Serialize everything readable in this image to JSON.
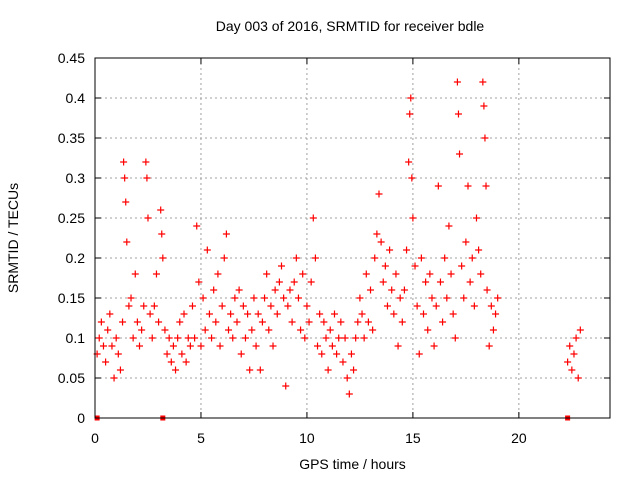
{
  "chart_data": {
    "type": "scatter",
    "title": "Day 003 of 2016, SRMTID for receiver bdle",
    "xlabel": "GPS time / hours",
    "ylabel": "SRMTID / TECUs",
    "xlim": [
      0,
      24.3
    ],
    "ylim": [
      0,
      0.45
    ],
    "xticks": [
      0,
      5,
      10,
      15,
      20
    ],
    "yticks": [
      0,
      0.05,
      0.1,
      0.15,
      0.2,
      0.25,
      0.3,
      0.35,
      0.4,
      0.45
    ],
    "ytick_labels": [
      "0",
      "0.05",
      "0.1",
      "0.15",
      "0.2",
      "0.25",
      "0.3",
      "0.35",
      "0.4",
      "0.45"
    ],
    "grid": true,
    "marker": "+",
    "series": [
      {
        "name": "SRMTID",
        "color": "#ff0000",
        "points": [
          [
            0.1,
            0.08
          ],
          [
            0.2,
            0.1
          ],
          [
            0.3,
            0.12
          ],
          [
            0.4,
            0.09
          ],
          [
            0.5,
            0.07
          ],
          [
            0.6,
            0.11
          ],
          [
            0.7,
            0.13
          ],
          [
            0.8,
            0.09
          ],
          [
            0.9,
            0.05
          ],
          [
            1.0,
            0.1
          ],
          [
            1.1,
            0.08
          ],
          [
            1.2,
            0.06
          ],
          [
            1.3,
            0.12
          ],
          [
            1.35,
            0.32
          ],
          [
            1.4,
            0.3
          ],
          [
            1.45,
            0.27
          ],
          [
            1.5,
            0.22
          ],
          [
            1.6,
            0.14
          ],
          [
            1.7,
            0.15
          ],
          [
            1.8,
            0.1
          ],
          [
            1.9,
            0.18
          ],
          [
            2.0,
            0.12
          ],
          [
            2.1,
            0.09
          ],
          [
            2.2,
            0.11
          ],
          [
            2.3,
            0.14
          ],
          [
            2.4,
            0.32
          ],
          [
            2.45,
            0.3
          ],
          [
            2.5,
            0.25
          ],
          [
            2.6,
            0.13
          ],
          [
            2.7,
            0.1
          ],
          [
            2.8,
            0.14
          ],
          [
            2.9,
            0.18
          ],
          [
            3.0,
            0.12
          ],
          [
            3.1,
            0.26
          ],
          [
            3.15,
            0.23
          ],
          [
            3.2,
            0.2
          ],
          [
            3.3,
            0.11
          ],
          [
            3.4,
            0.08
          ],
          [
            3.5,
            0.1
          ],
          [
            3.6,
            0.07
          ],
          [
            3.7,
            0.09
          ],
          [
            3.8,
            0.06
          ],
          [
            3.9,
            0.1
          ],
          [
            4.0,
            0.12
          ],
          [
            4.1,
            0.08
          ],
          [
            4.2,
            0.13
          ],
          [
            4.3,
            0.07
          ],
          [
            4.4,
            0.1
          ],
          [
            4.5,
            0.09
          ],
          [
            4.6,
            0.14
          ],
          [
            4.7,
            0.1
          ],
          [
            4.8,
            0.24
          ],
          [
            4.9,
            0.17
          ],
          [
            5.0,
            0.09
          ],
          [
            5.1,
            0.15
          ],
          [
            5.2,
            0.11
          ],
          [
            5.3,
            0.21
          ],
          [
            5.4,
            0.13
          ],
          [
            5.5,
            0.1
          ],
          [
            5.6,
            0.16
          ],
          [
            5.7,
            0.12
          ],
          [
            5.8,
            0.18
          ],
          [
            5.9,
            0.09
          ],
          [
            6.0,
            0.14
          ],
          [
            6.1,
            0.2
          ],
          [
            6.2,
            0.23
          ],
          [
            6.3,
            0.11
          ],
          [
            6.4,
            0.13
          ],
          [
            6.5,
            0.1
          ],
          [
            6.6,
            0.15
          ],
          [
            6.7,
            0.12
          ],
          [
            6.8,
            0.16
          ],
          [
            6.9,
            0.08
          ],
          [
            7.0,
            0.14
          ],
          [
            7.1,
            0.1
          ],
          [
            7.2,
            0.13
          ],
          [
            7.3,
            0.06
          ],
          [
            7.4,
            0.11
          ],
          [
            7.5,
            0.15
          ],
          [
            7.6,
            0.09
          ],
          [
            7.7,
            0.13
          ],
          [
            7.8,
            0.06
          ],
          [
            7.9,
            0.12
          ],
          [
            8.0,
            0.15
          ],
          [
            8.1,
            0.18
          ],
          [
            8.2,
            0.11
          ],
          [
            8.3,
            0.14
          ],
          [
            8.4,
            0.09
          ],
          [
            8.5,
            0.16
          ],
          [
            8.6,
            0.13
          ],
          [
            8.7,
            0.17
          ],
          [
            8.8,
            0.19
          ],
          [
            8.9,
            0.15
          ],
          [
            9.0,
            0.04
          ],
          [
            9.1,
            0.14
          ],
          [
            9.2,
            0.16
          ],
          [
            9.3,
            0.12
          ],
          [
            9.4,
            0.17
          ],
          [
            9.5,
            0.2
          ],
          [
            9.6,
            0.15
          ],
          [
            9.7,
            0.11
          ],
          [
            9.8,
            0.18
          ],
          [
            9.9,
            0.1
          ],
          [
            10.0,
            0.14
          ],
          [
            10.1,
            0.12
          ],
          [
            10.2,
            0.17
          ],
          [
            10.3,
            0.25
          ],
          [
            10.4,
            0.2
          ],
          [
            10.5,
            0.09
          ],
          [
            10.6,
            0.13
          ],
          [
            10.7,
            0.08
          ],
          [
            10.8,
            0.12
          ],
          [
            10.9,
            0.1
          ],
          [
            11.0,
            0.06
          ],
          [
            11.1,
            0.11
          ],
          [
            11.2,
            0.09
          ],
          [
            11.3,
            0.13
          ],
          [
            11.4,
            0.08
          ],
          [
            11.5,
            0.1
          ],
          [
            11.6,
            0.12
          ],
          [
            11.7,
            0.07
          ],
          [
            11.8,
            0.1
          ],
          [
            11.9,
            0.05
          ],
          [
            12.0,
            0.03
          ],
          [
            12.1,
            0.08
          ],
          [
            12.2,
            0.06
          ],
          [
            12.3,
            0.1
          ],
          [
            12.4,
            0.12
          ],
          [
            12.5,
            0.15
          ],
          [
            12.6,
            0.13
          ],
          [
            12.7,
            0.1
          ],
          [
            12.8,
            0.18
          ],
          [
            12.9,
            0.12
          ],
          [
            13.0,
            0.16
          ],
          [
            13.1,
            0.11
          ],
          [
            13.2,
            0.2
          ],
          [
            13.3,
            0.23
          ],
          [
            13.4,
            0.28
          ],
          [
            13.5,
            0.22
          ],
          [
            13.6,
            0.17
          ],
          [
            13.7,
            0.19
          ],
          [
            13.8,
            0.14
          ],
          [
            13.9,
            0.21
          ],
          [
            14.0,
            0.16
          ],
          [
            14.1,
            0.13
          ],
          [
            14.2,
            0.18
          ],
          [
            14.3,
            0.09
          ],
          [
            14.4,
            0.15
          ],
          [
            14.5,
            0.12
          ],
          [
            14.6,
            0.16
          ],
          [
            14.7,
            0.21
          ],
          [
            14.8,
            0.32
          ],
          [
            14.85,
            0.38
          ],
          [
            14.9,
            0.4
          ],
          [
            14.95,
            0.3
          ],
          [
            15.0,
            0.25
          ],
          [
            15.1,
            0.19
          ],
          [
            15.2,
            0.14
          ],
          [
            15.3,
            0.08
          ],
          [
            15.4,
            0.2
          ],
          [
            15.5,
            0.13
          ],
          [
            15.6,
            0.17
          ],
          [
            15.7,
            0.11
          ],
          [
            15.8,
            0.18
          ],
          [
            15.9,
            0.15
          ],
          [
            16.0,
            0.09
          ],
          [
            16.1,
            0.14
          ],
          [
            16.2,
            0.29
          ],
          [
            16.3,
            0.17
          ],
          [
            16.4,
            0.12
          ],
          [
            16.5,
            0.2
          ],
          [
            16.6,
            0.15
          ],
          [
            16.7,
            0.24
          ],
          [
            16.8,
            0.18
          ],
          [
            16.9,
            0.13
          ],
          [
            17.0,
            0.1
          ],
          [
            17.1,
            0.42
          ],
          [
            17.15,
            0.38
          ],
          [
            17.2,
            0.33
          ],
          [
            17.3,
            0.19
          ],
          [
            17.4,
            0.15
          ],
          [
            17.5,
            0.22
          ],
          [
            17.6,
            0.29
          ],
          [
            17.7,
            0.17
          ],
          [
            17.8,
            0.2
          ],
          [
            17.9,
            0.14
          ],
          [
            18.0,
            0.25
          ],
          [
            18.1,
            0.21
          ],
          [
            18.2,
            0.18
          ],
          [
            18.3,
            0.42
          ],
          [
            18.35,
            0.39
          ],
          [
            18.4,
            0.35
          ],
          [
            18.45,
            0.29
          ],
          [
            18.5,
            0.16
          ],
          [
            18.6,
            0.09
          ],
          [
            18.7,
            0.14
          ],
          [
            18.8,
            0.11
          ],
          [
            18.9,
            0.13
          ],
          [
            19.0,
            0.15
          ],
          [
            22.3,
            0.07
          ],
          [
            22.4,
            0.09
          ],
          [
            22.5,
            0.06
          ],
          [
            22.6,
            0.08
          ],
          [
            22.7,
            0.1
          ],
          [
            22.8,
            0.05
          ],
          [
            22.9,
            0.11
          ]
        ]
      }
    ],
    "zero_markers_x": [
      0.1,
      3.2,
      22.3
    ]
  }
}
